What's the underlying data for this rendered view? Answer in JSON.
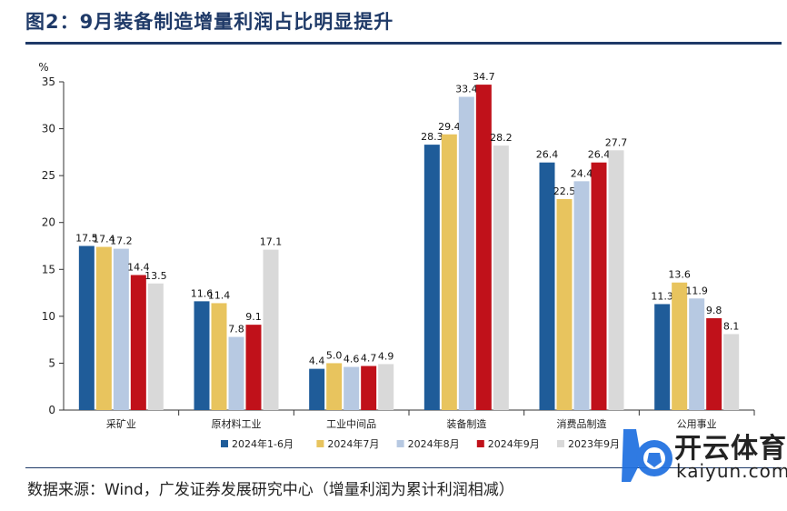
{
  "header": {
    "title": "图2：9月装备制造增量利润占比明显提升"
  },
  "footer": {
    "source": "数据来源：Wind，广发证券发展研究中心（增量利润为累计利润相减）"
  },
  "watermark": {
    "brand_cn": "开云体育",
    "brand_en": "kaiyun.com"
  },
  "chart_data": {
    "type": "bar",
    "title": "",
    "ylabel": "%",
    "xlabel": "",
    "ylim": [
      0,
      35
    ],
    "yticks": [
      "0",
      "5",
      "10",
      "15",
      "20",
      "25",
      "30",
      "35"
    ],
    "legend_position": "bottom",
    "grid": false,
    "categories": [
      "采矿业",
      "原材料工业",
      "工业中间品",
      "装备制造",
      "消费品制造",
      "公用事业"
    ],
    "series": [
      {
        "name": "2024年1-6月",
        "color": "#1f5c99",
        "values": [
          17.5,
          11.6,
          4.4,
          28.3,
          26.4,
          11.3
        ],
        "labels": [
          "17.5",
          "11.6",
          "4.4",
          "28.3",
          "26.4",
          "11.3"
        ]
      },
      {
        "name": "2024年7月",
        "color": "#e8c45e",
        "values": [
          17.4,
          11.4,
          5.0,
          29.4,
          22.5,
          13.6
        ],
        "labels": [
          "17.4",
          "11.4",
          "5.0",
          "29.4",
          "22.5",
          "13.6"
        ]
      },
      {
        "name": "2024年8月",
        "color": "#b7c9e2",
        "values": [
          17.2,
          7.8,
          4.6,
          33.4,
          24.4,
          11.9
        ],
        "labels": [
          "17.2",
          "7.8",
          "4.6",
          "33.4",
          "24.4",
          "11.9"
        ]
      },
      {
        "name": "2024年9月",
        "color": "#c0111a",
        "values": [
          14.4,
          9.1,
          4.7,
          34.7,
          26.4,
          9.8
        ],
        "labels": [
          "14.4",
          "9.1",
          "4.7",
          "34.7",
          "26.4",
          "9.8"
        ]
      },
      {
        "name": "2023年9月",
        "color": "#d9d9d9",
        "values": [
          13.5,
          17.1,
          4.9,
          28.2,
          27.7,
          8.1
        ],
        "labels": [
          "13.5",
          "17.1",
          "4.9",
          "28.2",
          "27.7",
          "8.1"
        ]
      }
    ]
  }
}
